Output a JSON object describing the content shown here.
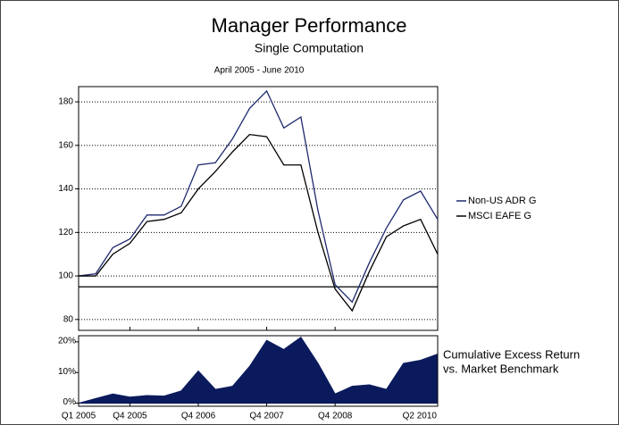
{
  "chart_data": [
    {
      "type": "line",
      "title": "Manager Performance",
      "subtitle": "Single Computation",
      "annotation": "April 2005 - June 2010",
      "ylim": [
        75,
        187
      ],
      "yticks": [
        80,
        100,
        120,
        140,
        160,
        180
      ],
      "grid": true,
      "reference_line": 95,
      "legend": "right",
      "series": [
        {
          "name": "Non-US ADR G",
          "color": "#1f2a6e",
          "values": [
            100,
            101,
            113,
            117,
            128,
            128,
            132,
            151,
            152,
            163,
            177,
            185,
            168,
            173,
            130,
            96,
            88,
            106,
            122,
            135,
            139,
            126
          ]
        },
        {
          "name": "MSCI EAFE G",
          "color": "#000000",
          "values": [
            100,
            100,
            110,
            115,
            125,
            126,
            129,
            140,
            148,
            157,
            165,
            164,
            151,
            151,
            120,
            94,
            84,
            102,
            118,
            123,
            126,
            110
          ]
        }
      ]
    },
    {
      "type": "area",
      "annotation_lines": [
        "Cumulative Excess Return",
        "vs. Market Benchmark"
      ],
      "categories": [
        "Q1 2005",
        null,
        null,
        "Q4 2005",
        null,
        null,
        null,
        "Q4 2006",
        null,
        null,
        null,
        "Q4 2007",
        null,
        null,
        null,
        "Q4 2008",
        null,
        null,
        null,
        null,
        null,
        "Q2 2010"
      ],
      "values": [
        0,
        1.5,
        3,
        2,
        2.5,
        2.3,
        4,
        10.5,
        4.5,
        5.5,
        12,
        20.5,
        17.5,
        21.5,
        13,
        3,
        5.5,
        6,
        4.5,
        13,
        14,
        16
      ],
      "color": "#0b1a5c",
      "ylim": [
        -1,
        22
      ],
      "yticks": [
        {
          "value": 0,
          "label": "0%"
        },
        {
          "value": 10,
          "label": "10%"
        },
        {
          "value": 20,
          "label": "20%"
        }
      ]
    }
  ]
}
